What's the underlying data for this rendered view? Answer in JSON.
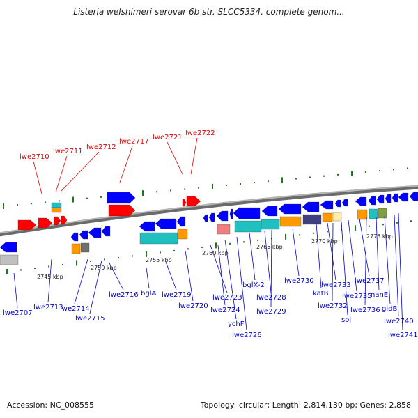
{
  "title": "Listeria welshimeri serovar 6b str. SLCC5334, complete genom...",
  "footer": {
    "accession": "Accession: NC_008555",
    "summary": "Topology: circular; Length: 2,814,130 bp; Genes: 2,858"
  },
  "colors": {
    "backbone": "#808080",
    "tick": "#1a7a1a",
    "label_top": "#e00000",
    "label_bottom": "#0000cc",
    "gene_blue": "#0000ff",
    "gene_red": "#ff0000",
    "gene_cyan": "#20c0c0",
    "gene_orange": "#ff9900",
    "gene_gray": "#c0c0c0",
    "gene_darkgray": "#707070",
    "gene_pink": "#f08080",
    "gene_purple": "#404080",
    "gene_yellow": "#ffeeaa",
    "gene_olive": "#80a040"
  },
  "scale_labels": [
    "2745 kbp",
    "2750 kbp",
    "2755 kbp",
    "2760 kbp",
    "2765 kbp",
    "2770 kbp",
    "2775 kbp"
  ],
  "top_labels": [
    "lwe2710",
    "lwe2711",
    "lwe2712",
    "lwe2717",
    "lwe2721",
    "lwe2722"
  ],
  "bottom_labels": [
    "lwe2707",
    "lwe2713",
    "lwe2714",
    "lwe2715",
    "lwe2716",
    "bglA",
    "lwe2719",
    "lwe2720",
    "lwe2723",
    "lwe2724",
    "ychF",
    "lwe2726",
    "bglX-2",
    "lwe2728",
    "lwe2729",
    "lwe2730",
    "katB",
    "lwe2733",
    "lwe2732",
    "soj",
    "lwe2735",
    "lwe2737",
    "lwe2736",
    "nanE",
    "gidB",
    "lwe2740",
    "lwe2741"
  ]
}
